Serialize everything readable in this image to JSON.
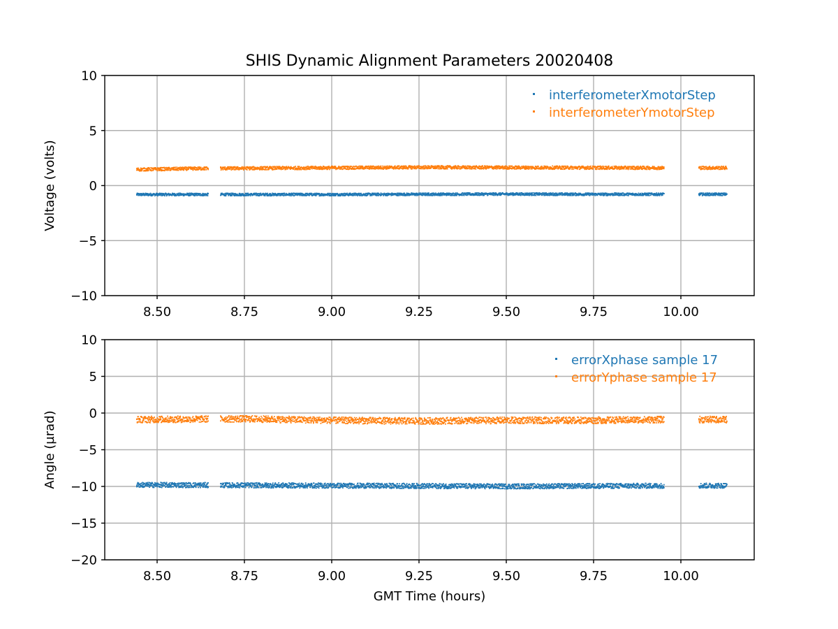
{
  "colors": {
    "series_blue": "#1f77b4",
    "series_orange": "#ff7f0e"
  },
  "chart_data": [
    {
      "type": "scatter",
      "title": "SHIS Dynamic Alignment Parameters 20020408",
      "xlabel": "",
      "ylabel": "Voltage (volts)",
      "xlim": [
        8.35,
        10.21
      ],
      "ylim": [
        -10,
        10
      ],
      "xticks": [
        8.5,
        8.75,
        9.0,
        9.25,
        9.5,
        9.75,
        10.0
      ],
      "xtick_labels": [
        "8.50",
        "8.75",
        "9.00",
        "9.25",
        "9.50",
        "9.75",
        "10.00"
      ],
      "yticks": [
        -10,
        -5,
        0,
        5,
        10
      ],
      "ytick_labels": [
        "−10",
        "−5",
        "0",
        "5",
        "10"
      ],
      "grid": true,
      "legend_position": "top-right",
      "segments": [
        [
          8.44,
          8.645
        ],
        [
          8.68,
          9.95
        ],
        [
          10.05,
          10.13
        ]
      ],
      "series": [
        {
          "name": "interferometerXmotorStep",
          "color": "#1f77b4",
          "mean": -0.8,
          "spread": 0.12,
          "x": [
            8.44,
            9.0,
            9.5,
            9.75,
            10.13
          ],
          "y": [
            -0.82,
            -0.82,
            -0.78,
            -0.8,
            -0.8
          ]
        },
        {
          "name": "interferometerYmotorStep",
          "color": "#ff7f0e",
          "mean": 1.6,
          "spread": 0.15,
          "x": [
            8.44,
            8.64,
            8.68,
            9.25,
            9.95,
            10.13
          ],
          "y": [
            1.45,
            1.55,
            1.55,
            1.65,
            1.6,
            1.6
          ]
        }
      ]
    },
    {
      "type": "scatter",
      "title": "",
      "xlabel": "GMT Time (hours)",
      "ylabel": "Angle (µrad)",
      "xlim": [
        8.35,
        10.21
      ],
      "ylim": [
        -20,
        10
      ],
      "xticks": [
        8.5,
        8.75,
        9.0,
        9.25,
        9.5,
        9.75,
        10.0
      ],
      "xtick_labels": [
        "8.50",
        "8.75",
        "9.00",
        "9.25",
        "9.50",
        "9.75",
        "10.00"
      ],
      "yticks": [
        -20,
        -15,
        -10,
        -5,
        0,
        5,
        10
      ],
      "ytick_labels": [
        "−20",
        "−15",
        "−10",
        "−5",
        "0",
        "5",
        "10"
      ],
      "grid": true,
      "legend_position": "top-right",
      "segments": [
        [
          8.44,
          8.645
        ],
        [
          8.68,
          9.95
        ],
        [
          10.05,
          10.13
        ]
      ],
      "series": [
        {
          "name": "errorXphase sample 17",
          "color": "#1f77b4",
          "mean": -9.9,
          "spread": 0.35,
          "x": [
            8.44,
            9.0,
            9.5,
            9.75,
            10.13
          ],
          "y": [
            -9.8,
            -9.9,
            -10.0,
            -9.95,
            -9.9
          ]
        },
        {
          "name": "errorYphase sample 17",
          "color": "#ff7f0e",
          "mean": -0.9,
          "spread": 0.45,
          "x": [
            8.44,
            8.75,
            9.0,
            9.25,
            9.5,
            9.75,
            9.95,
            10.13
          ],
          "y": [
            -0.9,
            -0.8,
            -1.0,
            -1.1,
            -1.0,
            -1.0,
            -0.9,
            -0.9
          ]
        }
      ]
    }
  ]
}
